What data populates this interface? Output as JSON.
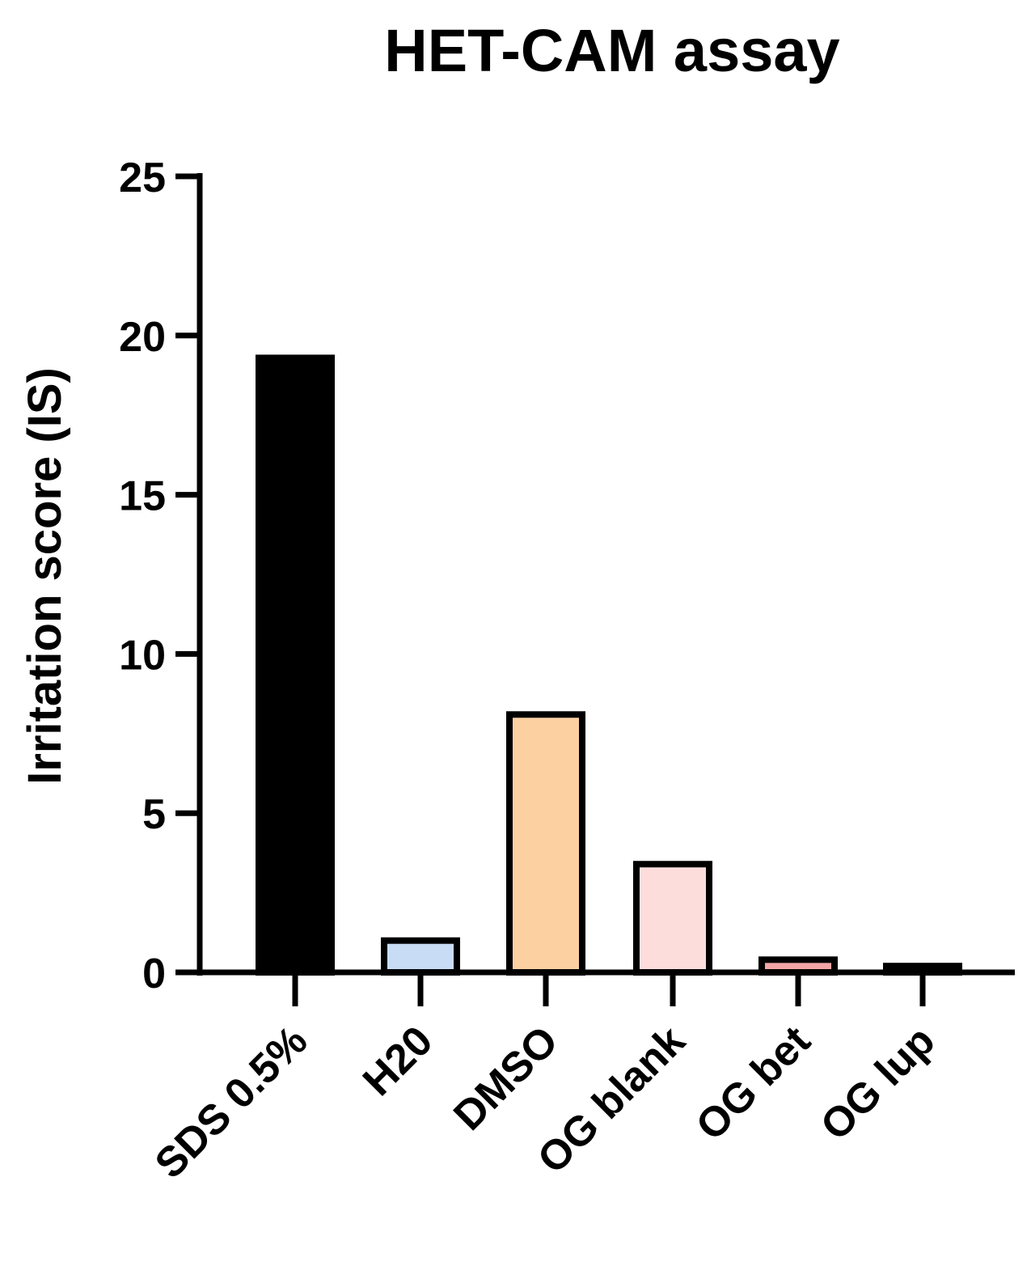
{
  "chart_data": {
    "type": "bar",
    "title": "HET-CAM assay",
    "xlabel": "",
    "ylabel": "Irritation score (IS)",
    "ylim": [
      0,
      25
    ],
    "yticks": [
      0,
      5,
      10,
      15,
      20,
      25
    ],
    "categories": [
      "SDS 0.5%",
      "H20",
      "DMSO",
      "OG blank",
      "OG bet",
      "OG lup"
    ],
    "values": [
      19.4,
      1.1,
      8.2,
      3.5,
      0.5,
      0.3
    ],
    "colors": [
      "#000000",
      "#c8dcf5",
      "#fdd0a2",
      "#fddcdc",
      "#f4a6a6",
      "#000000"
    ],
    "grid": false,
    "legend": "none"
  }
}
